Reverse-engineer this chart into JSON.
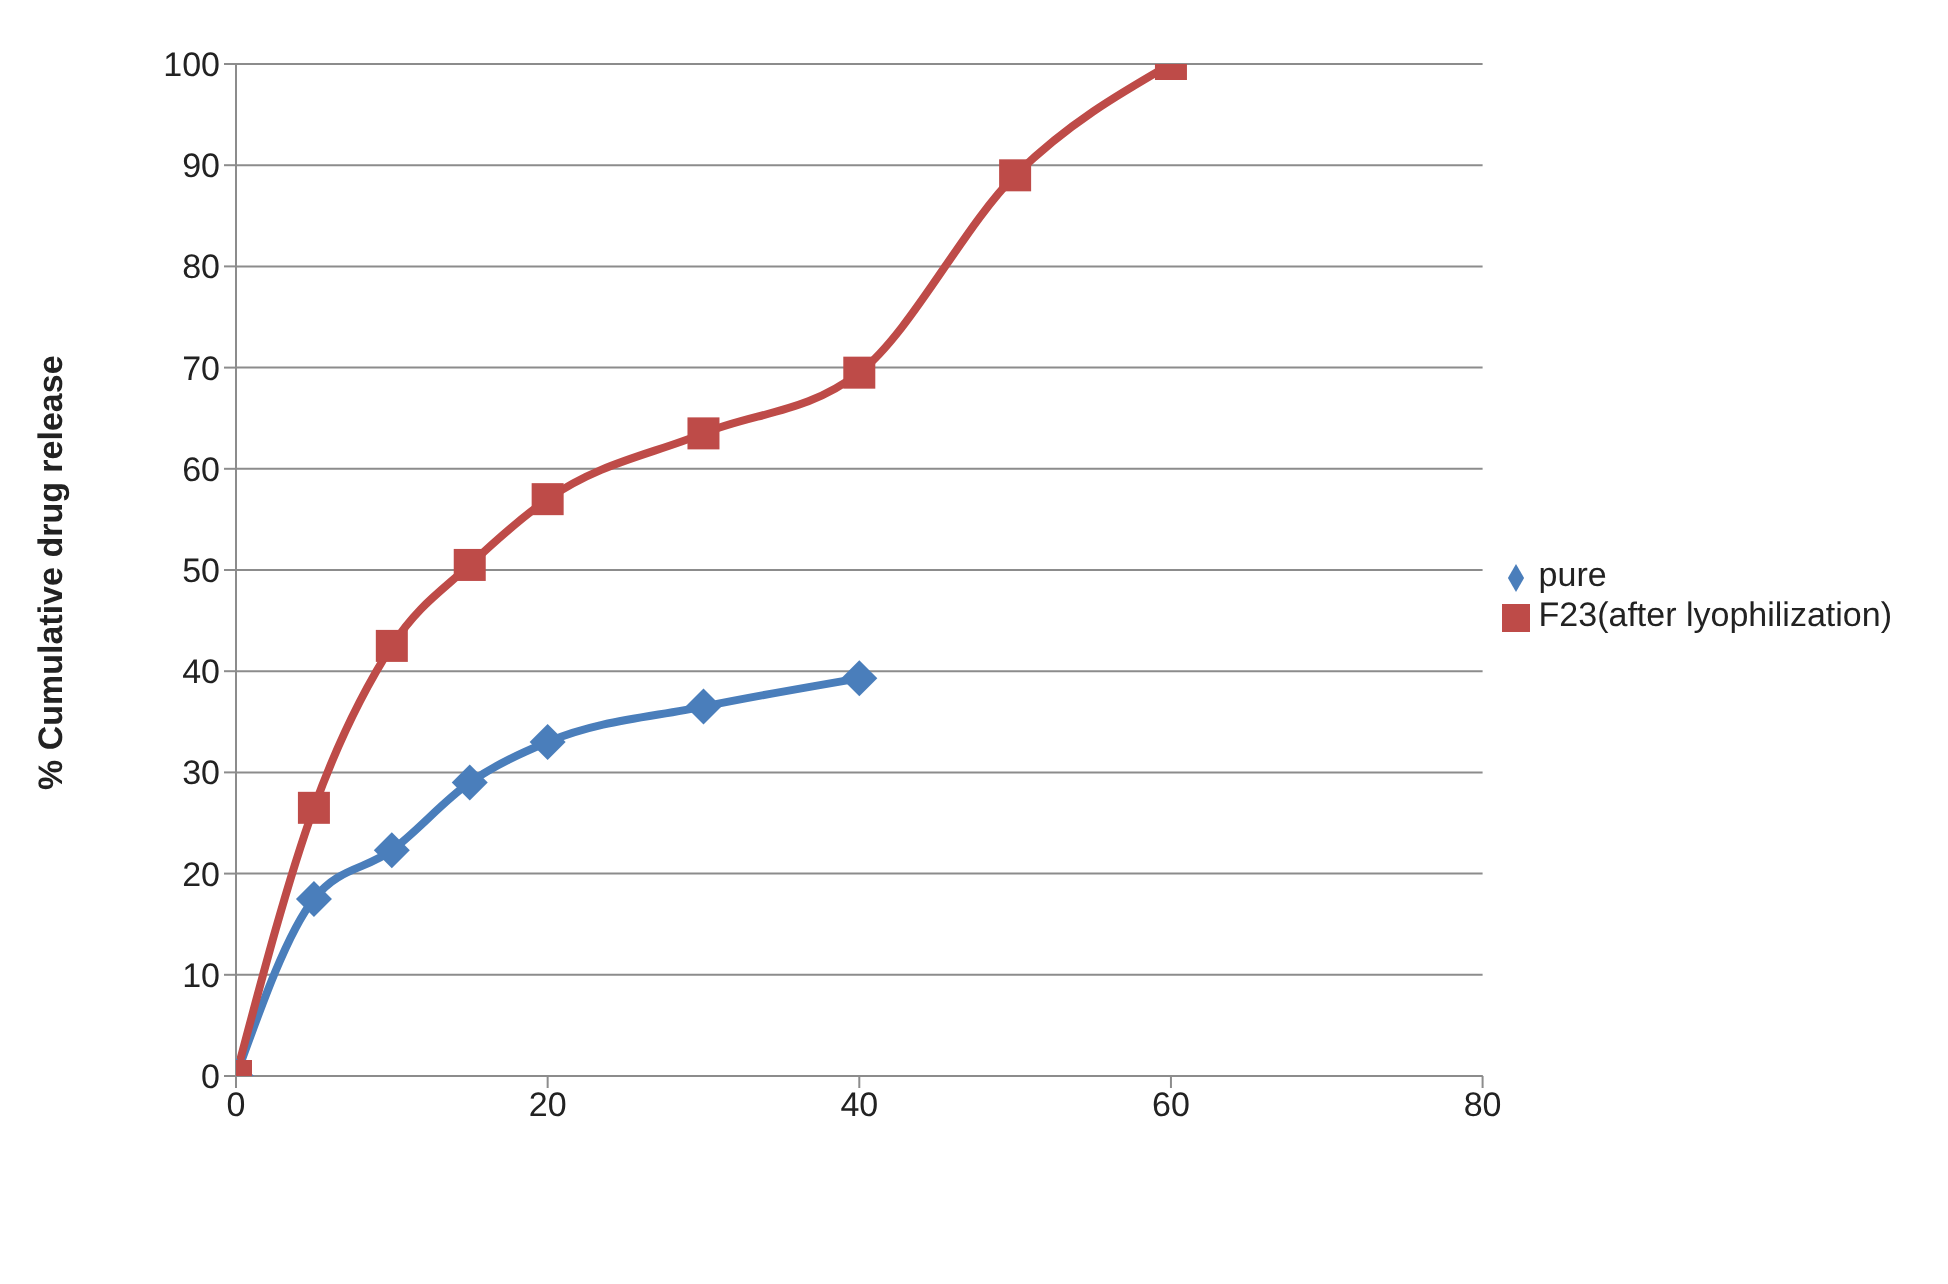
{
  "chart_data": {
    "type": "line",
    "ylabel": "% Cumulative drug release",
    "series": [
      {
        "name": "pure",
        "color": "#4a7ebb",
        "marker": "diamond",
        "x": [
          0,
          5,
          10,
          15,
          20,
          30,
          40
        ],
        "values": [
          0,
          17.5,
          22.3,
          29,
          33,
          36.5,
          39.3
        ]
      },
      {
        "name": "F23(after lyophilization)",
        "color": "#be4b48",
        "marker": "square",
        "x": [
          0,
          5,
          10,
          15,
          20,
          30,
          40,
          50,
          60
        ],
        "values": [
          0,
          26.5,
          42.5,
          50.5,
          57,
          63.5,
          69.5,
          89,
          100
        ]
      }
    ],
    "xlim": [
      0,
      80
    ],
    "xticks": [
      0,
      20,
      40,
      60,
      80
    ],
    "ylim": [
      0,
      100
    ],
    "yticks": [
      0,
      10,
      20,
      30,
      40,
      50,
      60,
      70,
      80,
      90,
      100
    ],
    "grid": "y",
    "legend": "right"
  }
}
